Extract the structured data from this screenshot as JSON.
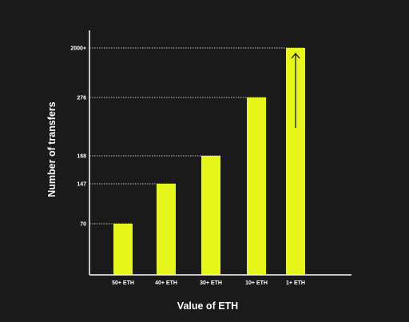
{
  "colors": {
    "background": "#1a1a1a",
    "bar": "#e6f51a",
    "axis": "#ffffff",
    "guide": "#ffffff",
    "arrow": "#111111"
  },
  "chart_data": {
    "type": "bar",
    "xlabel": "Value of ETH",
    "ylabel": "Number of transfers",
    "categories": [
      "50+ ETH",
      "40+ ETH",
      "30+ ETH",
      "10+ ETH",
      "1+ ETH"
    ],
    "values": [
      70,
      147,
      168,
      276,
      2000
    ],
    "value_labels": [
      "70",
      "147",
      "168",
      "276",
      "2000+"
    ],
    "scale": "non-linear (broken scale, top bar exceeds axis)",
    "guide_lines": "dotted",
    "annotation": "upward-arrow-on-top-bar",
    "grid": false,
    "legend": "none"
  }
}
